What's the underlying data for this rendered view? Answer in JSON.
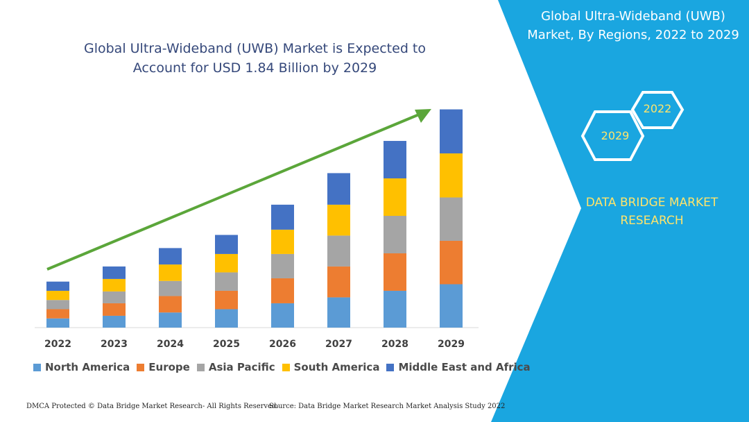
{
  "header": {
    "chart_title_line1": "Global Ultra-Wideband (UWB) Market is Expected to",
    "chart_title_line2": "Account for USD 1.84 Billion by 2029",
    "panel_title_line1": "Global Ultra-Wideband (UWB)",
    "panel_title_line2": "Market, By Regions, 2022 to 2029"
  },
  "badges": {
    "start_year": "2022",
    "end_year": "2029"
  },
  "brand": {
    "line1": "DATA BRIDGE MARKET",
    "line2": "RESEARCH"
  },
  "footer": {
    "left": "DMCA Protected © Data Bridge Market Research- All Rights Reserved.",
    "right": "Source: Data Bridge Market Research Market Analysis Study 2022"
  },
  "colors": {
    "accent_blue": "#1aa6e0",
    "arrow_green": "#5ba63a",
    "title_text": "#35487a",
    "brand_yellow": "#ffe46b"
  },
  "chart_data": {
    "type": "bar",
    "stacked": true,
    "categories": [
      "2022",
      "2023",
      "2024",
      "2025",
      "2026",
      "2027",
      "2028",
      "2029"
    ],
    "series": [
      {
        "name": "North America",
        "color": "#5b9bd5",
        "values": [
          14,
          18,
          23,
          28,
          37,
          46,
          56,
          66
        ]
      },
      {
        "name": "Europe",
        "color": "#ed7d31",
        "values": [
          14,
          19,
          25,
          28,
          38,
          47,
          57,
          66
        ]
      },
      {
        "name": "Asia Pacific",
        "color": "#a5a5a5",
        "values": [
          14,
          18,
          23,
          28,
          37,
          47,
          57,
          66
        ]
      },
      {
        "name": "South America",
        "color": "#ffc000",
        "values": [
          14,
          19,
          25,
          28,
          37,
          47,
          57,
          67
        ]
      },
      {
        "name": "Middle East and Africa",
        "color": "#4472c4",
        "values": [
          14,
          19,
          25,
          29,
          38,
          48,
          57,
          67
        ]
      }
    ],
    "ylim": [
      0,
      340
    ],
    "legend_position": "bottom",
    "grid": false,
    "trend_arrow": true
  }
}
